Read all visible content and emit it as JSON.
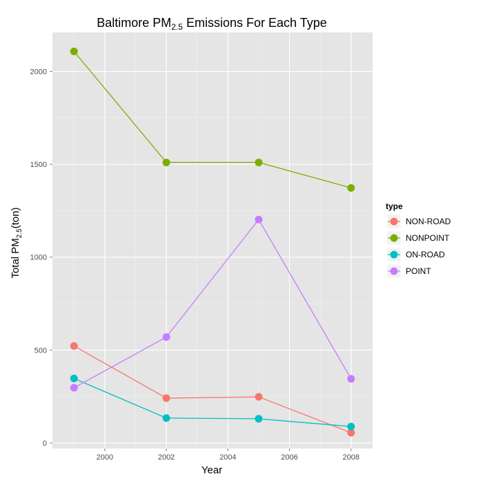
{
  "chart_data": {
    "type": "line",
    "title": {
      "prefix": "Baltimore PM",
      "sub": "2.5",
      "suffix": " Emissions For Each Type"
    },
    "xlabel": "Year",
    "ylabel": {
      "prefix": "Total PM",
      "sub": "2.5",
      "suffix": "(ton)"
    },
    "x": [
      1999,
      2002,
      2005,
      2008
    ],
    "xlim": [
      1998.3,
      2008.7
    ],
    "ylim": [
      -30,
      2210
    ],
    "xticks": [
      2000,
      2002,
      2004,
      2006,
      2008
    ],
    "yticks": [
      0,
      500,
      1000,
      1500,
      2000
    ],
    "grid": true,
    "legend": {
      "title": "type",
      "position": "right"
    },
    "series": [
      {
        "name": "NON-ROAD",
        "color": "#F8766D",
        "values": [
          522,
          241,
          248,
          55
        ]
      },
      {
        "name": "NONPOINT",
        "color": "#7CAE00",
        "values": [
          2108,
          1510,
          1510,
          1373
        ]
      },
      {
        "name": "ON-ROAD",
        "color": "#00BFC4",
        "values": [
          347,
          134,
          130,
          88
        ]
      },
      {
        "name": "POINT",
        "color": "#C77CFF",
        "values": [
          297,
          570,
          1203,
          345
        ]
      }
    ]
  }
}
